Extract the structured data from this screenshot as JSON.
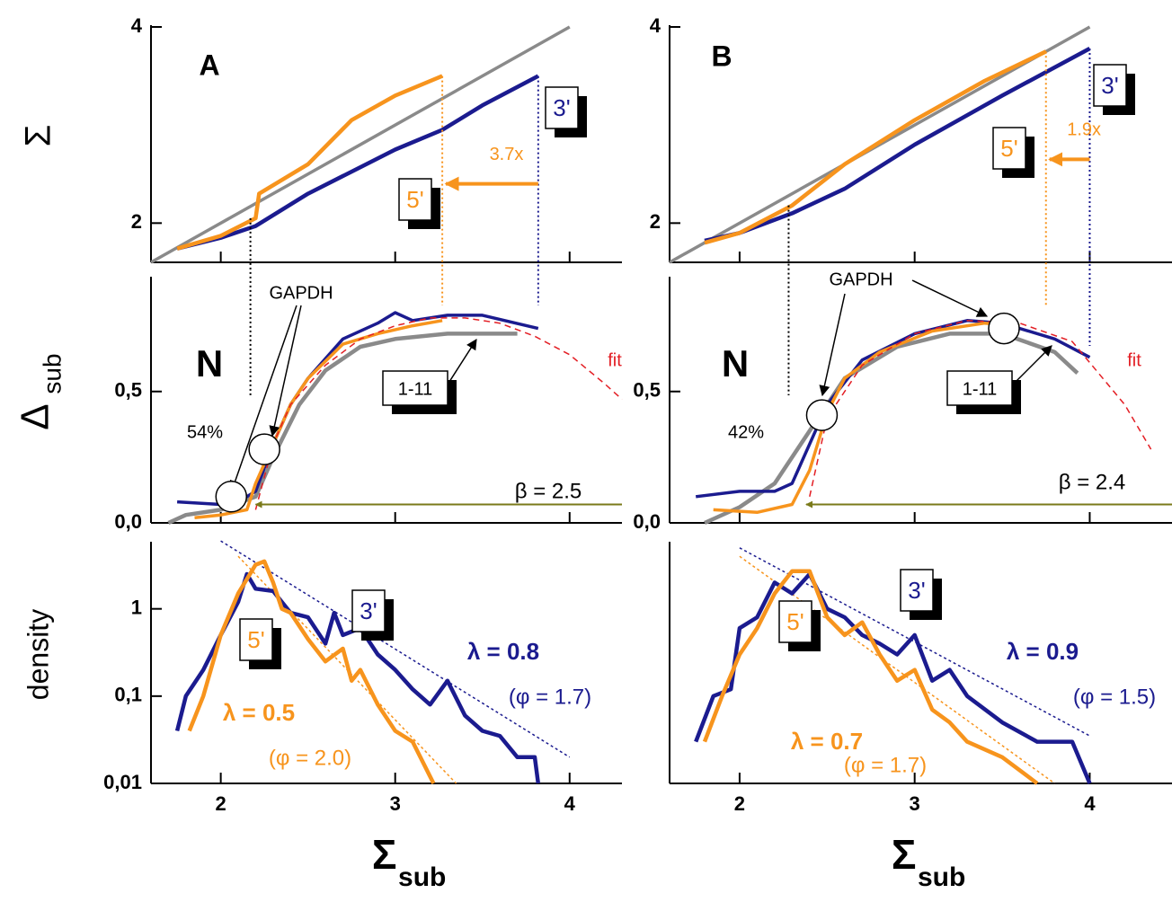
{
  "chart_data": [
    {
      "type": "line",
      "xlim": [
        1.6,
        4.3
      ],
      "ylim": [
        1.6,
        4
      ],
      "xticks": [
        2,
        3,
        4
      ],
      "yticks": [
        2,
        4
      ],
      "show_xtick_labels": false,
      "ylabel": "Σ",
      "series": [
        {
          "color": "#8a8a8a",
          "style": "thin",
          "x": [
            1.6,
            4
          ],
          "values": [
            1.6,
            4
          ]
        },
        {
          "color": "#1b1b8f",
          "style": "thick",
          "x": [
            1.75,
            2.0,
            2.2,
            2.5,
            3.0,
            3.27,
            3.5,
            3.82
          ],
          "values": [
            1.74,
            1.85,
            1.97,
            2.3,
            2.75,
            2.95,
            3.2,
            3.5
          ]
        },
        {
          "color": "#f7941d",
          "style": "thick",
          "x": [
            1.75,
            2.0,
            2.2,
            2.22,
            2.5,
            2.75,
            3.0,
            3.27
          ],
          "values": [
            1.74,
            1.87,
            2.05,
            2.3,
            2.6,
            3.05,
            3.3,
            3.5
          ]
        }
      ],
      "vlines": [
        {
          "x": 2.17,
          "y": 2.05,
          "color": "#000000"
        },
        {
          "x": 3.27,
          "y": 3.5,
          "color": "#f7941d"
        },
        {
          "x": 3.82,
          "y": 3.5,
          "color": "#1b1b8f"
        }
      ],
      "ratio_arrow": {
        "from": 3.82,
        "to": 3.27,
        "y": 2.4,
        "label": "3.7x",
        "color": "#f7941d"
      },
      "annotations": [
        {
          "text": "A",
          "color": "#000000"
        },
        {
          "text": "3'",
          "color": "#1b1b8f",
          "boxed": true
        },
        {
          "text": "5'",
          "color": "#f7941d",
          "boxed": true
        }
      ]
    },
    {
      "type": "line",
      "xlim": [
        1.6,
        4.47
      ],
      "ylim": [
        1.6,
        4
      ],
      "xticks": [
        2,
        3,
        4
      ],
      "yticks": [
        2,
        4
      ],
      "show_xtick_labels": false,
      "series": [
        {
          "color": "#8a8a8a",
          "style": "thin",
          "x": [
            1.6,
            4
          ],
          "values": [
            1.6,
            4
          ]
        },
        {
          "color": "#1b1b8f",
          "style": "thick",
          "x": [
            1.8,
            2.0,
            2.3,
            2.6,
            3.0,
            3.5,
            4.0
          ],
          "values": [
            1.82,
            1.9,
            2.1,
            2.35,
            2.8,
            3.3,
            3.78
          ]
        },
        {
          "color": "#f7941d",
          "style": "thick",
          "x": [
            1.8,
            2.0,
            2.3,
            2.6,
            3.0,
            3.4,
            3.75
          ],
          "values": [
            1.8,
            1.9,
            2.18,
            2.6,
            3.05,
            3.45,
            3.75
          ]
        }
      ],
      "vlines": [
        {
          "x": 2.28,
          "y": 2.18,
          "color": "#000000"
        },
        {
          "x": 3.75,
          "y": 3.75,
          "color": "#f7941d"
        },
        {
          "x": 4.0,
          "y": 3.78,
          "color": "#1b1b8f"
        }
      ],
      "ratio_arrow": {
        "from": 4.0,
        "to": 3.75,
        "y": 2.65,
        "label": "1.9x",
        "color": "#f7941d"
      },
      "annotations": [
        {
          "text": "B",
          "color": "#000000"
        },
        {
          "text": "3'",
          "color": "#1b1b8f",
          "boxed": true
        },
        {
          "text": "5'",
          "color": "#f7941d",
          "boxed": true
        }
      ]
    },
    {
      "type": "line",
      "xlim": [
        1.6,
        4.3
      ],
      "ylim": [
        0,
        0.93
      ],
      "xticks": [
        2,
        3,
        4
      ],
      "yticks": [
        {
          "value": 0,
          "label": "0,0"
        },
        {
          "value": 0.5,
          "label": "0,5"
        }
      ],
      "show_xtick_labels": false,
      "ylabel": "Δ",
      "ylabel_sub": "sub",
      "series": [
        {
          "color": "#8a8a8a",
          "style": "thick",
          "x": [
            1.7,
            1.8,
            2.0,
            2.2,
            2.3,
            2.45,
            2.6,
            2.8,
            3.0,
            3.3,
            3.5,
            3.7
          ],
          "values": [
            0.0,
            0.03,
            0.05,
            0.1,
            0.25,
            0.45,
            0.58,
            0.67,
            0.7,
            0.72,
            0.72,
            0.72
          ]
        },
        {
          "color": "#1b1b8f",
          "style": "medium",
          "x": [
            1.75,
            2.0,
            2.1,
            2.2,
            2.3,
            2.4,
            2.5,
            2.7,
            2.9,
            3.0,
            3.1,
            3.3,
            3.5,
            3.82
          ],
          "values": [
            0.08,
            0.07,
            0.08,
            0.12,
            0.3,
            0.45,
            0.55,
            0.7,
            0.76,
            0.8,
            0.77,
            0.79,
            0.79,
            0.74
          ]
        },
        {
          "color": "#f7941d",
          "style": "medium",
          "x": [
            1.85,
            2.0,
            2.15,
            2.2,
            2.3,
            2.4,
            2.5,
            2.7,
            2.9,
            3.1,
            3.27
          ],
          "values": [
            0.02,
            0.03,
            0.05,
            0.15,
            0.3,
            0.45,
            0.55,
            0.68,
            0.72,
            0.75,
            0.77
          ]
        },
        {
          "color": "#e31e24",
          "style": "dashed",
          "x": [
            2.2,
            2.3,
            2.4,
            2.6,
            2.8,
            3.0,
            3.2,
            3.4,
            3.6,
            3.8,
            4.0,
            4.2,
            4.3
          ],
          "values": [
            0.05,
            0.3,
            0.45,
            0.6,
            0.7,
            0.75,
            0.78,
            0.78,
            0.76,
            0.71,
            0.64,
            0.53,
            0.47
          ]
        }
      ],
      "markers": {
        "x": [
          2.06,
          2.25
        ],
        "values": [
          0.1,
          0.28
        ]
      },
      "arrow": {
        "from": 4.3,
        "to": 2.2,
        "y": 0.07,
        "color": "#7a7a1a"
      },
      "annotations": [
        {
          "text": "N",
          "color": "#000000"
        },
        {
          "text": "GAPDH",
          "color": "#000000"
        },
        {
          "text": "54%",
          "color": "#000000"
        },
        {
          "text": "1-11",
          "color": "#000000",
          "boxed": true
        },
        {
          "text": "fit",
          "color": "#e31e24"
        },
        {
          "text": "β = 2.5",
          "color": "#000000"
        }
      ]
    },
    {
      "type": "line",
      "xlim": [
        1.6,
        4.47
      ],
      "ylim": [
        0,
        0.93
      ],
      "xticks": [
        2,
        3,
        4
      ],
      "yticks": [
        {
          "value": 0,
          "label": "0,0"
        },
        {
          "value": 0.5,
          "label": "0,5"
        }
      ],
      "show_xtick_labels": false,
      "series": [
        {
          "color": "#8a8a8a",
          "style": "thick",
          "x": [
            1.8,
            2.0,
            2.2,
            2.4,
            2.6,
            2.9,
            3.2,
            3.5,
            3.8,
            3.93
          ],
          "values": [
            0.0,
            0.06,
            0.15,
            0.35,
            0.55,
            0.67,
            0.72,
            0.72,
            0.65,
            0.57
          ]
        },
        {
          "color": "#1b1b8f",
          "style": "medium",
          "x": [
            1.75,
            2.0,
            2.2,
            2.3,
            2.4,
            2.5,
            2.7,
            3.0,
            3.3,
            3.5,
            3.8,
            4.0
          ],
          "values": [
            0.1,
            0.12,
            0.12,
            0.15,
            0.3,
            0.45,
            0.62,
            0.72,
            0.77,
            0.76,
            0.7,
            0.63
          ]
        },
        {
          "color": "#f7941d",
          "style": "medium",
          "x": [
            1.85,
            2.1,
            2.3,
            2.4,
            2.5,
            2.6,
            2.8,
            3.1,
            3.4,
            3.6
          ],
          "values": [
            0.05,
            0.04,
            0.07,
            0.2,
            0.42,
            0.55,
            0.65,
            0.73,
            0.76,
            0.75
          ]
        },
        {
          "color": "#e31e24",
          "style": "dashed",
          "x": [
            2.4,
            2.5,
            2.7,
            3.0,
            3.3,
            3.6,
            3.9,
            4.2,
            4.35
          ],
          "values": [
            0.1,
            0.4,
            0.6,
            0.72,
            0.77,
            0.76,
            0.69,
            0.45,
            0.28
          ]
        }
      ],
      "markers": {
        "x": [
          2.47,
          3.51
        ],
        "values": [
          0.41,
          0.74
        ]
      },
      "arrow": {
        "from": 4.47,
        "to": 2.38,
        "y": 0.07,
        "color": "#7a7a1a"
      },
      "annotations": [
        {
          "text": "N",
          "color": "#000000"
        },
        {
          "text": "GAPDH",
          "color": "#000000"
        },
        {
          "text": "42%",
          "color": "#000000"
        },
        {
          "text": "1-11",
          "color": "#000000",
          "boxed": true
        },
        {
          "text": "fit",
          "color": "#e31e24"
        },
        {
          "text": "β = 2.4",
          "color": "#000000"
        }
      ]
    },
    {
      "type": "line",
      "log": true,
      "xlim": [
        1.6,
        4.3
      ],
      "ylim": [
        0.01,
        5.6
      ],
      "xticks": [
        2,
        3,
        4
      ],
      "yticks": [
        {
          "value": 0.01,
          "label": "0,01"
        },
        {
          "value": 0.1,
          "label": "0,1"
        },
        1
      ],
      "show_xtick_labels": true,
      "ylabel": "density",
      "xlabel": "Σ",
      "xlabel_sub": "sub",
      "series": [
        {
          "color": "#1b1b8f",
          "style": "dotted",
          "x": [
            2.0,
            4.0
          ],
          "values": [
            6,
            0.02
          ]
        },
        {
          "color": "#f7941d",
          "style": "dotted",
          "x": [
            2.1,
            3.35
          ],
          "values": [
            4,
            0.01
          ]
        },
        {
          "color": "#1b1b8f",
          "style": "thick",
          "x": [
            1.75,
            1.8,
            1.9,
            2.0,
            2.1,
            2.15,
            2.2,
            2.3,
            2.4,
            2.5,
            2.6,
            2.65,
            2.7,
            2.8,
            2.9,
            3.0,
            3.1,
            3.2,
            3.3,
            3.4,
            3.5,
            3.6,
            3.7,
            3.8,
            3.82
          ],
          "values": [
            0.04,
            0.1,
            0.2,
            0.5,
            1.2,
            2.5,
            1.7,
            1.6,
            0.9,
            0.8,
            0.4,
            0.9,
            0.5,
            0.6,
            0.3,
            0.2,
            0.12,
            0.08,
            0.15,
            0.06,
            0.04,
            0.035,
            0.02,
            0.02,
            0.01
          ]
        },
        {
          "color": "#f7941d",
          "style": "thick",
          "x": [
            1.82,
            1.9,
            2.0,
            2.1,
            2.2,
            2.25,
            2.3,
            2.35,
            2.4,
            2.5,
            2.6,
            2.7,
            2.75,
            2.8,
            2.9,
            3.0,
            3.1,
            3.2,
            3.22
          ],
          "values": [
            0.04,
            0.1,
            0.5,
            1.5,
            3.2,
            3.5,
            2.0,
            1.0,
            0.9,
            0.45,
            0.25,
            0.35,
            0.15,
            0.2,
            0.08,
            0.04,
            0.03,
            0.012,
            0.01
          ]
        }
      ],
      "annotations": [
        {
          "text": "3'",
          "color": "#1b1b8f",
          "boxed": true
        },
        {
          "text": "5'",
          "color": "#f7941d",
          "boxed": true
        },
        {
          "text": "λ = 0.8",
          "color": "#1b1b8f"
        },
        {
          "text": "(φ = 1.7)",
          "color": "#1b1b8f"
        },
        {
          "text": "λ = 0.5",
          "color": "#f7941d"
        },
        {
          "text": "(φ = 2.0)",
          "color": "#f7941d"
        }
      ]
    },
    {
      "type": "line",
      "log": true,
      "xlim": [
        1.6,
        4.47
      ],
      "ylim": [
        0.01,
        5.6
      ],
      "xticks": [
        2,
        3,
        4
      ],
      "yticks": [],
      "show_xtick_labels": true,
      "xlabel": "Σ",
      "xlabel_sub": "sub",
      "series": [
        {
          "color": "#1b1b8f",
          "style": "dotted",
          "x": [
            2.0,
            4.0
          ],
          "values": [
            5,
            0.035
          ]
        },
        {
          "color": "#f7941d",
          "style": "dotted",
          "x": [
            2.0,
            3.8
          ],
          "values": [
            4,
            0.01
          ]
        },
        {
          "color": "#1b1b8f",
          "style": "thick",
          "x": [
            1.75,
            1.85,
            1.95,
            2.0,
            2.1,
            2.2,
            2.3,
            2.4,
            2.5,
            2.6,
            2.7,
            2.8,
            2.9,
            3.0,
            3.1,
            3.2,
            3.3,
            3.5,
            3.7,
            3.9,
            4.0
          ],
          "values": [
            0.03,
            0.1,
            0.12,
            0.6,
            0.8,
            2.0,
            1.5,
            2.5,
            1.0,
            0.8,
            0.5,
            0.4,
            0.3,
            0.5,
            0.15,
            0.2,
            0.1,
            0.05,
            0.03,
            0.03,
            0.01
          ]
        },
        {
          "color": "#f7941d",
          "style": "thick",
          "x": [
            1.8,
            1.9,
            2.0,
            2.1,
            2.2,
            2.3,
            2.4,
            2.5,
            2.6,
            2.7,
            2.8,
            2.9,
            3.0,
            3.1,
            3.2,
            3.3,
            3.5,
            3.7
          ],
          "values": [
            0.03,
            0.1,
            0.3,
            0.6,
            1.5,
            2.7,
            2.7,
            0.8,
            0.5,
            0.7,
            0.3,
            0.15,
            0.2,
            0.07,
            0.05,
            0.03,
            0.02,
            0.01
          ]
        }
      ],
      "annotations": [
        {
          "text": "3'",
          "color": "#1b1b8f",
          "boxed": true
        },
        {
          "text": "5'",
          "color": "#f7941d",
          "boxed": true
        },
        {
          "text": "λ = 0.9",
          "color": "#1b1b8f"
        },
        {
          "text": "(φ = 1.5)",
          "color": "#1b1b8f"
        },
        {
          "text": "λ = 0.7",
          "color": "#f7941d"
        },
        {
          "text": "(φ = 1.7)",
          "color": "#f7941d"
        }
      ]
    }
  ]
}
